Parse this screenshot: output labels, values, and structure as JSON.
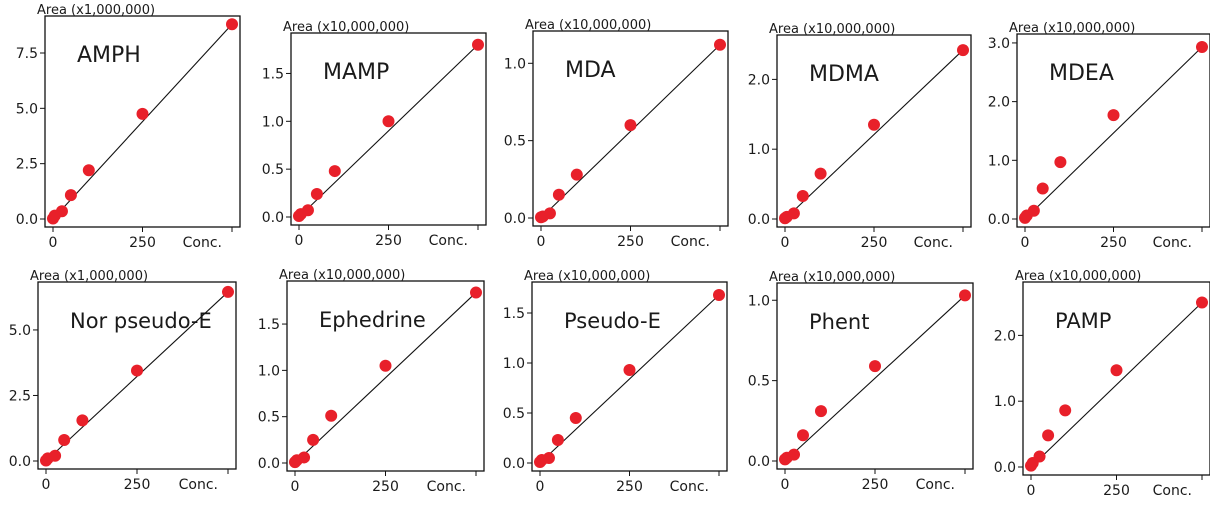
{
  "chart_data": [
    {
      "type": "scatter",
      "title": "AMPH",
      "ylabel": "Area (x1,000,000)",
      "xlabel": "Conc.",
      "xticks": [
        "0",
        "250"
      ],
      "yticks": [
        "0.0",
        "2.5",
        "5.0",
        "7.5"
      ],
      "ytick_values": [
        0,
        2.5,
        5.0,
        7.5
      ],
      "xlim": [
        0,
        250
      ],
      "ylim": [
        0,
        8.9
      ],
      "x": [
        0,
        5,
        25,
        50,
        100,
        250
      ],
      "y": [
        0.02,
        0.15,
        0.35,
        1.08,
        2.2,
        4.75
      ],
      "x_last": 500,
      "y_last": 8.8,
      "fit": [
        [
          0,
          0
        ],
        [
          500,
          8.8
        ]
      ]
    },
    {
      "type": "scatter",
      "title": "MAMP",
      "ylabel": "Area (x10,000,000)",
      "xlabel": "Conc.",
      "xticks": [
        "0",
        "250"
      ],
      "yticks": [
        "0.0",
        "0.5",
        "1.0",
        "1.5"
      ],
      "ytick_values": [
        0,
        0.5,
        1.0,
        1.5
      ],
      "xlim": [
        0,
        250
      ],
      "ylim": [
        0,
        1.86
      ],
      "x": [
        0,
        5,
        25,
        50,
        100,
        250
      ],
      "y": [
        0.01,
        0.03,
        0.07,
        0.24,
        0.48,
        1.0
      ],
      "x_last": 500,
      "y_last": 1.8,
      "fit": [
        [
          0,
          0
        ],
        [
          500,
          1.8
        ]
      ]
    },
    {
      "type": "scatter",
      "title": "MDA",
      "ylabel": "Area (x10,000,000)",
      "xlabel": "Conc.",
      "xticks": [
        "0",
        "250"
      ],
      "yticks": [
        "0.0",
        "0.5",
        "1.0"
      ],
      "ytick_values": [
        0,
        0.5,
        1.0
      ],
      "xlim": [
        0,
        250
      ],
      "ylim": [
        0,
        1.17
      ],
      "x": [
        0,
        5,
        25,
        50,
        100,
        250
      ],
      "y": [
        0.005,
        0.01,
        0.03,
        0.15,
        0.28,
        0.6
      ],
      "x_last": 500,
      "y_last": 1.12,
      "fit": [
        [
          0,
          0
        ],
        [
          500,
          1.12
        ]
      ]
    },
    {
      "type": "scatter",
      "title": "MDMA",
      "ylabel": "Area (x10,000,000)",
      "xlabel": "Conc.",
      "xticks": [
        "0",
        "250"
      ],
      "yticks": [
        "0.0",
        "1.0",
        "2.0"
      ],
      "ytick_values": [
        0,
        1.0,
        2.0
      ],
      "xlim": [
        0,
        250
      ],
      "ylim": [
        0,
        2.55
      ],
      "x": [
        0,
        5,
        25,
        50,
        100,
        250
      ],
      "y": [
        0.01,
        0.03,
        0.08,
        0.33,
        0.65,
        1.35
      ],
      "x_last": 500,
      "y_last": 2.42,
      "fit": [
        [
          0,
          0
        ],
        [
          500,
          2.42
        ]
      ]
    },
    {
      "type": "scatter",
      "title": "MDEA",
      "ylabel": "Area (x10,000,000)",
      "xlabel": "Conc.",
      "xticks": [
        "0",
        "250"
      ],
      "yticks": [
        "0.0",
        "1.0",
        "2.0",
        "3.0"
      ],
      "ytick_values": [
        0,
        1.0,
        2.0,
        3.0
      ],
      "xlim": [
        0,
        250
      ],
      "ylim": [
        0,
        3.05
      ],
      "x": [
        0,
        5,
        25,
        50,
        100,
        250
      ],
      "y": [
        0.02,
        0.06,
        0.14,
        0.52,
        0.97,
        1.77
      ],
      "x_last": 500,
      "y_last": 2.93,
      "fit": [
        [
          0,
          0
        ],
        [
          500,
          2.93
        ]
      ]
    },
    {
      "type": "scatter",
      "title": "Nor pseudo-E",
      "ylabel": "Area (x1,000,000)",
      "xlabel": "Conc.",
      "xticks": [
        "0",
        "250"
      ],
      "yticks": [
        "0.0",
        "2.5",
        "5.0"
      ],
      "ytick_values": [
        0,
        2.5,
        5.0
      ],
      "xlim": [
        0,
        250
      ],
      "ylim": [
        0,
        6.6
      ],
      "x": [
        0,
        5,
        25,
        50,
        100,
        250
      ],
      "y": [
        0.02,
        0.1,
        0.2,
        0.8,
        1.55,
        3.45
      ],
      "x_last": 500,
      "y_last": 6.45,
      "fit": [
        [
          0,
          0
        ],
        [
          500,
          6.45
        ]
      ]
    },
    {
      "type": "scatter",
      "title": "Ephedrine",
      "ylabel": "Area (x10,000,000)",
      "xlabel": "Conc.",
      "xticks": [
        "0",
        "250"
      ],
      "yticks": [
        "0.0",
        "0.5",
        "1.0",
        "1.5"
      ],
      "ytick_values": [
        0,
        0.5,
        1.0,
        1.5
      ],
      "xlim": [
        0,
        250
      ],
      "ylim": [
        0,
        1.9
      ],
      "x": [
        0,
        5,
        25,
        50,
        100,
        250
      ],
      "y": [
        0.01,
        0.03,
        0.06,
        0.25,
        0.51,
        1.05
      ],
      "x_last": 500,
      "y_last": 1.84,
      "fit": [
        [
          0,
          0
        ],
        [
          500,
          1.84
        ]
      ]
    },
    {
      "type": "scatter",
      "title": "Pseudo-E",
      "ylabel": "Area (x10,000,000)",
      "xlabel": "Conc.",
      "xticks": [
        "0",
        "250"
      ],
      "yticks": [
        "0.0",
        "0.5",
        "1.0",
        "1.5"
      ],
      "ytick_values": [
        0,
        0.5,
        1.0,
        1.5
      ],
      "xlim": [
        0,
        250
      ],
      "ylim": [
        0,
        1.75
      ],
      "x": [
        0,
        5,
        25,
        50,
        100,
        250
      ],
      "y": [
        0.01,
        0.03,
        0.05,
        0.23,
        0.45,
        0.93
      ],
      "x_last": 500,
      "y_last": 1.68,
      "fit": [
        [
          0,
          0
        ],
        [
          500,
          1.68
        ]
      ]
    },
    {
      "type": "scatter",
      "title": "Phent",
      "ylabel": "Area (x10,000,000)",
      "xlabel": "Conc.",
      "xticks": [
        "0",
        "250"
      ],
      "yticks": [
        "0.0",
        "0.5",
        "1.0"
      ],
      "ytick_values": [
        0,
        0.5,
        1.0
      ],
      "xlim": [
        0,
        250
      ],
      "ylim": [
        0,
        1.07
      ],
      "x": [
        0,
        5,
        25,
        50,
        100,
        250
      ],
      "y": [
        0.01,
        0.02,
        0.04,
        0.16,
        0.31,
        0.59
      ],
      "x_last": 500,
      "y_last": 1.03,
      "fit": [
        [
          0,
          0
        ],
        [
          500,
          1.03
        ]
      ]
    },
    {
      "type": "scatter",
      "title": "PAMP",
      "ylabel": "Area (x10,000,000)",
      "xlabel": "Conc.",
      "xticks": [
        "0",
        "250"
      ],
      "yticks": [
        "0.0",
        "1.0",
        "2.0"
      ],
      "ytick_values": [
        0,
        1.0,
        2.0
      ],
      "xlim": [
        0,
        250
      ],
      "ylim": [
        0,
        2.72
      ],
      "x": [
        0,
        5,
        25,
        50,
        100,
        250
      ],
      "y": [
        0.02,
        0.06,
        0.16,
        0.48,
        0.86,
        1.47
      ],
      "x_last": 500,
      "y_last": 2.5,
      "fit": [
        [
          0,
          0
        ],
        [
          500,
          2.5
        ]
      ]
    }
  ]
}
